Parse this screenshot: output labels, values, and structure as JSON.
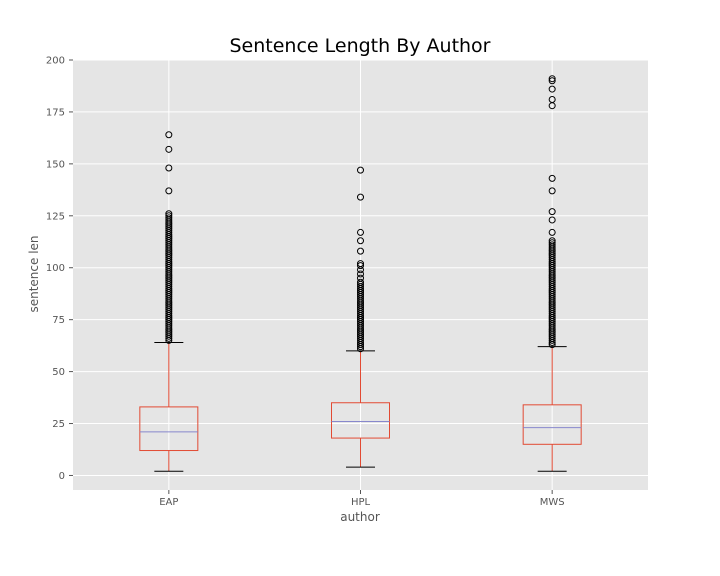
{
  "chart_data": {
    "type": "box",
    "title": "Sentence Length By Author",
    "xlabel": "author",
    "ylabel": "sentence len",
    "ylim": [
      -7,
      200
    ],
    "yticks": [
      0,
      25,
      50,
      75,
      100,
      125,
      150,
      175,
      200
    ],
    "grid": true,
    "categories": [
      "EAP",
      "HPL",
      "MWS"
    ],
    "boxes": [
      {
        "name": "EAP",
        "whisker_low": 2,
        "q1": 12,
        "median": 21,
        "q3": 33,
        "whisker_high": 64,
        "outliers": [
          65,
          66,
          67,
          68,
          69,
          70,
          71,
          72,
          73,
          74,
          75,
          76,
          77,
          78,
          79,
          80,
          81,
          82,
          83,
          84,
          85,
          86,
          87,
          88,
          89,
          90,
          91,
          92,
          93,
          94,
          95,
          96,
          97,
          98,
          99,
          100,
          101,
          102,
          103,
          104,
          105,
          106,
          107,
          108,
          109,
          110,
          111,
          112,
          113,
          114,
          115,
          116,
          117,
          118,
          119,
          120,
          121,
          122,
          123,
          124,
          125,
          126,
          137,
          148,
          157,
          164
        ]
      },
      {
        "name": "HPL",
        "whisker_low": 4,
        "q1": 18,
        "median": 26,
        "q3": 35,
        "whisker_high": 60,
        "outliers": [
          61,
          62,
          63,
          64,
          65,
          66,
          67,
          68,
          69,
          70,
          71,
          72,
          73,
          74,
          75,
          76,
          77,
          78,
          79,
          80,
          81,
          82,
          83,
          84,
          85,
          86,
          87,
          88,
          89,
          90,
          91,
          92,
          93,
          95,
          97,
          99,
          101,
          102,
          108,
          113,
          117,
          134,
          147
        ]
      },
      {
        "name": "MWS",
        "whisker_low": 2,
        "q1": 15,
        "median": 23,
        "q3": 34,
        "whisker_high": 62,
        "outliers": [
          63,
          64,
          65,
          66,
          67,
          68,
          69,
          70,
          71,
          72,
          73,
          74,
          75,
          76,
          77,
          78,
          79,
          80,
          81,
          82,
          83,
          84,
          85,
          86,
          87,
          88,
          89,
          90,
          91,
          92,
          93,
          94,
          95,
          96,
          97,
          98,
          99,
          100,
          101,
          102,
          103,
          104,
          105,
          106,
          107,
          108,
          109,
          110,
          111,
          112,
          113,
          117,
          123,
          127,
          137,
          143,
          178,
          181,
          186,
          190,
          191
        ]
      }
    ],
    "colors": {
      "background": "#e5e5e5",
      "grid": "#ffffff",
      "box": "#e24a33",
      "median": "#8888cc",
      "cap": "#000000",
      "flier": "#000000"
    }
  }
}
